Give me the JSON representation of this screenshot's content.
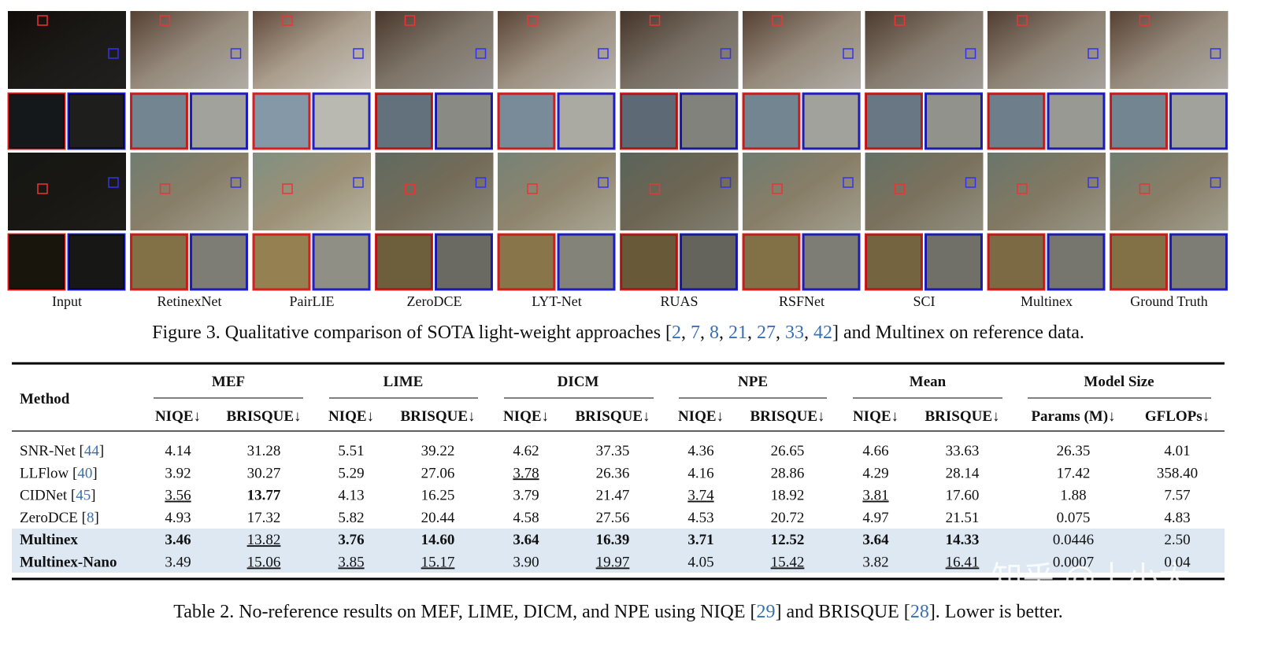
{
  "figure": {
    "columns": [
      "Input",
      "RetinexNet",
      "PairLIE",
      "ZeroDCE",
      "LYT-Net",
      "RUAS",
      "RSFNet",
      "SCI",
      "Multinex",
      "Ground Truth"
    ],
    "caption": [
      "Figure 3. Qualitative comparison of SOTA light-weight approaches [",
      "2",
      ", ",
      "7",
      ", ",
      "8",
      ", ",
      "21",
      ", ",
      "27",
      ", ",
      "33",
      ", ",
      "42",
      "] and Multinex on reference data."
    ]
  },
  "table": {
    "method_header": "Method",
    "groups": [
      "MEF",
      "LIME",
      "DICM",
      "NPE",
      "Mean",
      "Model Size"
    ],
    "subheaders": [
      "NIQE↓",
      "BRISQUE↓",
      "NIQE↓",
      "BRISQUE↓",
      "NIQE↓",
      "BRISQUE↓",
      "NIQE↓",
      "BRISQUE↓",
      "NIQE↓",
      "BRISQUE↓",
      "Params (M)↓",
      "GFLOPs↓"
    ],
    "rows": [
      {
        "method": [
          "SNR-Net [",
          "44",
          "]"
        ],
        "cells": [
          "4.14",
          "31.28",
          "5.51",
          "39.22",
          "4.62",
          "37.35",
          "4.36",
          "26.65",
          "4.66",
          "33.63",
          "26.35",
          "4.01"
        ],
        "bold": [],
        "underline": [],
        "highlight": false
      },
      {
        "method": [
          "LLFlow [",
          "40",
          "]"
        ],
        "cells": [
          "3.92",
          "30.27",
          "5.29",
          "27.06",
          "3.78",
          "26.36",
          "4.16",
          "28.86",
          "4.29",
          "28.14",
          "17.42",
          "358.40"
        ],
        "bold": [],
        "underline": [
          4
        ],
        "highlight": false
      },
      {
        "method": [
          "CIDNet [",
          "45",
          "]"
        ],
        "cells": [
          "3.56",
          "13.77",
          "4.13",
          "16.25",
          "3.79",
          "21.47",
          "3.74",
          "18.92",
          "3.81",
          "17.60",
          "1.88",
          "7.57"
        ],
        "bold": [
          1
        ],
        "underline": [
          0,
          6,
          8
        ],
        "highlight": false
      },
      {
        "method": [
          "ZeroDCE [",
          "8",
          "]"
        ],
        "cells": [
          "4.93",
          "17.32",
          "5.82",
          "20.44",
          "4.58",
          "27.56",
          "4.53",
          "20.72",
          "4.97",
          "21.51",
          "0.075",
          "4.83"
        ],
        "bold": [],
        "underline": [],
        "highlight": false
      },
      {
        "method": [
          "Multinex"
        ],
        "cells": [
          "3.46",
          "13.82",
          "3.76",
          "14.60",
          "3.64",
          "16.39",
          "3.71",
          "12.52",
          "3.64",
          "14.33",
          "0.0446",
          "2.50"
        ],
        "bold": [
          0,
          2,
          3,
          4,
          5,
          6,
          7,
          8,
          9
        ],
        "underline": [
          1
        ],
        "highlight": true
      },
      {
        "method": [
          "Multinex-Nano"
        ],
        "cells": [
          "3.49",
          "15.06",
          "3.85",
          "15.17",
          "3.90",
          "19.97",
          "4.05",
          "15.42",
          "3.82",
          "16.41",
          "0.0007",
          "0.04"
        ],
        "bold": [],
        "underline": [
          1,
          2,
          3,
          5,
          7,
          9
        ],
        "highlight": true
      }
    ],
    "caption": [
      "Table 2. No-reference results on MEF, LIME, DICM, and NPE using NIQE [",
      "29",
      "] and BRISQUE [",
      "28",
      "]. Lower is better."
    ]
  },
  "watermark": "知乎 @十小大"
}
